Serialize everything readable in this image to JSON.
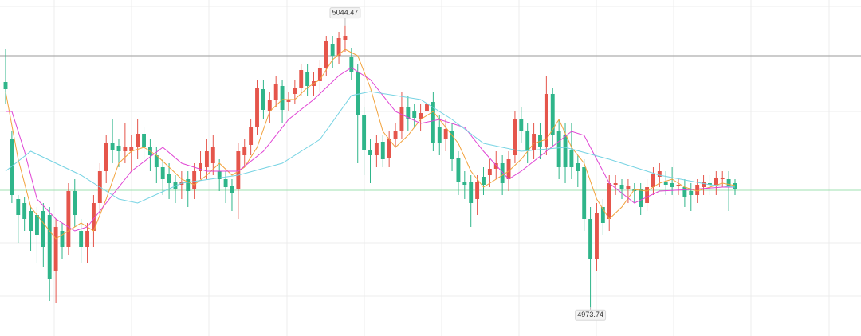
{
  "chart_data": {
    "type": "candlestick",
    "ylim": [
      4966.6,
      5051
    ],
    "up_color": "#e5554b",
    "down_color": "#2fb58a",
    "candles": [
      [
        5030.4,
        5038.6,
        5025.0,
        5028.6
      ],
      [
        5016.0,
        5018.0,
        5000.0,
        5002.0
      ],
      [
        5001.0,
        5002.0,
        4990.0,
        4997.0
      ],
      [
        5000.0,
        5001.4,
        4993.0,
        4996.0
      ],
      [
        4998.0,
        4999.0,
        4988.0,
        4993.0
      ],
      [
        4997.0,
        4999.0,
        4985.0,
        4992.0
      ],
      [
        4998.0,
        5000.0,
        4984.0,
        4989.0
      ],
      [
        4997.0,
        4999.0,
        4975.4,
        4981.0
      ],
      [
        4983.0,
        4996.0,
        4975.0,
        4994.0
      ],
      [
        4993.0,
        4995.0,
        4986.0,
        4989.0
      ],
      [
        4989.0,
        5005.0,
        4987.0,
        5003.0
      ],
      [
        5003.0,
        5006.0,
        4994.0,
        4997.0
      ],
      [
        4993.0,
        4996.0,
        4985.0,
        4989.0
      ],
      [
        4989.0,
        4995.0,
        4985.0,
        4993.0
      ],
      [
        4993.0,
        5002.0,
        4989.0,
        5000.0
      ],
      [
        5000.0,
        5010.0,
        4997.0,
        5008.0
      ],
      [
        5008.0,
        5017.0,
        5005.0,
        5015.0
      ],
      [
        5015.0,
        5021.0,
        5010.0,
        5013.4
      ],
      [
        5014.4,
        5016.0,
        5009.0,
        5013.0
      ],
      [
        5013.0,
        5020.0,
        5010.0,
        5014.0
      ],
      [
        5013.0,
        5017.0,
        5008.0,
        5014.2
      ],
      [
        5014.0,
        5021.0,
        5011.0,
        5017.4
      ],
      [
        5017.4,
        5019.0,
        5011.0,
        5014.0
      ],
      [
        5014.0,
        5016.0,
        5008.0,
        5012.0
      ],
      [
        5012.0,
        5014.0,
        5005.0,
        5009.0
      ],
      [
        5009.0,
        5011.0,
        5002.0,
        5006.0
      ],
      [
        5007.4,
        5010.0,
        5001.0,
        5005.0
      ],
      [
        5005.4,
        5007.0,
        5000.0,
        5003.4
      ],
      [
        5004.6,
        5008.0,
        5001.0,
        5005.4
      ],
      [
        5006.0,
        5008.0,
        4999.0,
        5003.0
      ],
      [
        5003.4,
        5010.0,
        5001.0,
        5008.0
      ],
      [
        5008.0,
        5013.0,
        5006.0,
        5010.0
      ],
      [
        5009.0,
        5016.0,
        5006.0,
        5013.0
      ],
      [
        5010.0,
        5017.0,
        5007.0,
        5014.0
      ],
      [
        5008.0,
        5011.0,
        5003.0,
        5006.0
      ],
      [
        5006.0,
        5008.0,
        5000.0,
        5004.0
      ],
      [
        5004.2,
        5006.0,
        4998.0,
        5002.6
      ],
      [
        5003.4,
        5015.0,
        4996.0,
        5013.0
      ],
      [
        5012.0,
        5016.0,
        5009.0,
        5014.0
      ],
      [
        5014.6,
        5021.0,
        5012.0,
        5019.0
      ],
      [
        5019.0,
        5031.0,
        5017.0,
        5029.0
      ],
      [
        5028.6,
        5031.0,
        5021.0,
        5023.4
      ],
      [
        5023.0,
        5028.0,
        5020.0,
        5026.0
      ],
      [
        5026.0,
        5032.0,
        5024.0,
        5030.0
      ],
      [
        5029.4,
        5031.0,
        5020.0,
        5023.4
      ],
      [
        5025.4,
        5028.0,
        5023.0,
        5026.0
      ],
      [
        5027.4,
        5031.0,
        5025.0,
        5029.0
      ],
      [
        5029.0,
        5035.0,
        5027.0,
        5033.4
      ],
      [
        5033.0,
        5035.0,
        5027.0,
        5029.4
      ],
      [
        5029.4,
        5033.0,
        5027.0,
        5030.6
      ],
      [
        5030.6,
        5036.0,
        5028.0,
        5034.0
      ],
      [
        5034.0,
        5042.0,
        5032.0,
        5040.6
      ],
      [
        5040.0,
        5042.0,
        5034.0,
        5037.0
      ],
      [
        5037.0,
        5043.0,
        5035.0,
        5041.4
      ],
      [
        5041.0,
        5044.47,
        5038.0,
        5042.0
      ],
      [
        5036.6,
        5039.0,
        5031.0,
        5033.0
      ],
      [
        5033.0,
        5035.0,
        5010.0,
        5022.0
      ],
      [
        5022.0,
        5024.0,
        5007.0,
        5013.4
      ],
      [
        5013.4,
        5016.0,
        5005.0,
        5012.0
      ],
      [
        5012.0,
        5017.0,
        5009.0,
        5015.0
      ],
      [
        5015.4,
        5017.0,
        5009.0,
        5011.0
      ],
      [
        5011.4,
        5018.0,
        5009.0,
        5016.0
      ],
      [
        5016.0,
        5020.0,
        5014.0,
        5018.0
      ],
      [
        5018.0,
        5028.0,
        5016.0,
        5024.0
      ],
      [
        5024.0,
        5027.0,
        5018.0,
        5021.0
      ],
      [
        5023.0,
        5025.0,
        5019.0,
        5021.4
      ],
      [
        5021.0,
        5025.0,
        5018.0,
        5022.6
      ],
      [
        5023.0,
        5027.0,
        5020.0,
        5025.0
      ],
      [
        5025.4,
        5028.0,
        5013.0,
        5015.0
      ],
      [
        5019.0,
        5022.0,
        5012.0,
        5015.0
      ],
      [
        5016.0,
        5021.0,
        5013.0,
        5018.6
      ],
      [
        5018.0,
        5020.0,
        5008.0,
        5011.0
      ],
      [
        5011.4,
        5013.0,
        5002.0,
        5005.4
      ],
      [
        5005.4,
        5008.0,
        5001.0,
        5004.6
      ],
      [
        5005.4,
        5007.0,
        4994.0,
        5000.0
      ],
      [
        5001.0,
        5007.0,
        4997.0,
        5005.4
      ],
      [
        5006.6,
        5009.0,
        5002.0,
        5004.6
      ],
      [
        5007.0,
        5011.0,
        5004.0,
        5008.6
      ],
      [
        5008.6,
        5013.0,
        5006.0,
        5010.0
      ],
      [
        5010.0,
        5012.0,
        5002.0,
        5005.0
      ],
      [
        5006.0,
        5013.0,
        5003.0,
        5011.0
      ],
      [
        5012.0,
        5023.0,
        5010.0,
        5021.0
      ],
      [
        5021.0,
        5024.0,
        5015.0,
        5018.0
      ],
      [
        5018.0,
        5020.0,
        5010.0,
        5013.0
      ],
      [
        5013.4,
        5020.0,
        5011.0,
        5017.4
      ],
      [
        5017.0,
        5020.0,
        5011.0,
        5014.0
      ],
      [
        5014.0,
        5032.0,
        5012.0,
        5027.4
      ],
      [
        5027.4,
        5029.0,
        5014.0,
        5017.0
      ],
      [
        5018.0,
        5021.0,
        5006.0,
        5009.0
      ],
      [
        5017.0,
        5020.0,
        5005.0,
        5009.0
      ],
      [
        5013.4,
        5020.0,
        5006.0,
        5009.0
      ],
      [
        5010.0,
        5012.0,
        5004.0,
        5008.0
      ],
      [
        5009.0,
        5011.0,
        4993.0,
        4996.0
      ],
      [
        4996.0,
        4999.0,
        4973.74,
        4986.0
      ],
      [
        4986.0,
        5000.0,
        4983.0,
        4997.4
      ],
      [
        4999.0,
        5001.0,
        4992.0,
        4995.0
      ],
      [
        4996.0,
        5007.0,
        4993.0,
        5005.0
      ],
      [
        5004.6,
        5007.0,
        5002.0,
        5005.0
      ],
      [
        5004.6,
        5006.0,
        5001.0,
        5003.4
      ],
      [
        5003.4,
        5006.0,
        5000.0,
        5004.4
      ],
      [
        5003.4,
        5005.0,
        5000.0,
        5003.0
      ],
      [
        5003.4,
        5005.0,
        4997.0,
        4999.0
      ],
      [
        5000.0,
        5006.0,
        4998.0,
        5004.0
      ],
      [
        5004.0,
        5009.0,
        5002.0,
        5007.4
      ],
      [
        5006.6,
        5010.0,
        5004.0,
        5008.0
      ],
      [
        5005.4,
        5008.0,
        5002.0,
        5004.6
      ],
      [
        5005.0,
        5009.0,
        5002.0,
        5004.0
      ],
      [
        5004.4,
        5006.0,
        5002.0,
        5004.6
      ],
      [
        5004.0,
        5006.0,
        4999.0,
        5001.4
      ],
      [
        5003.0,
        5005.0,
        4998.0,
        5002.0
      ],
      [
        5002.0,
        5006.0,
        5000.0,
        5004.6
      ],
      [
        5004.0,
        5007.0,
        5002.0,
        5005.4
      ],
      [
        5005.0,
        5007.0,
        5002.0,
        5004.6
      ],
      [
        5004.6,
        5008.0,
        5002.0,
        5006.4
      ],
      [
        5006.0,
        5008.0,
        5004.0,
        5006.4
      ],
      [
        5006.0,
        5008.0,
        4998.0,
        5004.0
      ],
      [
        5005.0,
        5006.0,
        5002.0,
        5003.4
      ]
    ],
    "series": [
      {
        "color": "#f2a23c",
        "x": [
          0,
          2,
          4,
          6,
          8,
          10,
          12,
          14,
          16,
          18,
          20,
          22,
          24,
          26,
          28,
          30,
          32,
          34,
          36,
          38,
          40,
          42,
          44,
          46,
          48,
          50,
          52,
          54,
          56,
          58,
          60,
          62,
          64,
          66,
          68,
          70,
          72,
          74,
          76,
          78,
          80,
          82,
          84,
          86,
          88,
          90,
          92,
          94,
          96,
          98,
          100,
          102,
          104,
          106,
          108,
          110,
          112,
          114,
          116
        ],
        "values": [
          5028,
          5011,
          4999,
          4995,
          4991,
          4993,
          4995,
          4993,
          5001,
          5010,
          5013,
          5014,
          5012,
          5009,
          5006,
          5004.6,
          5007,
          5010,
          5007,
          5009,
          5014,
          5023,
          5026,
          5026,
          5029,
          5031,
          5036,
          5038.6,
          5037,
          5029,
          5018,
          5014,
          5017,
          5021,
          5023,
          5019,
          5015,
          5008,
          5004,
          5006,
          5008,
          5011,
          5015,
          5016,
          5021,
          5014,
          5010,
          5001,
          4996,
          4999,
          5003.4,
          5003,
          5005,
          5006,
          5004,
          5003,
          5004,
          5005,
          5004.4
        ]
      },
      {
        "color": "#e044d4",
        "x": [
          0,
          1,
          3,
          5,
          8,
          11,
          13,
          16,
          20,
          25,
          28,
          32,
          37,
          41,
          45,
          49,
          53,
          55,
          58,
          62,
          66,
          69,
          73,
          76,
          80,
          82,
          86,
          90,
          92,
          96,
          100,
          104,
          109,
          114,
          116
        ],
        "values": [
          5023,
          5023,
          5013,
          5001,
          4996,
          4993,
          4994,
          5000,
          5008,
          5014,
          5010,
          5008,
          5008,
          5013,
          5021,
          5026,
          5032,
          5034,
          5031,
          5023,
          5020,
          5021,
          5019,
          5013,
          5006,
          5008,
          5013,
          5018,
          5017,
          5005,
          5000,
          5003,
          5003.4,
          5004,
          5004
        ]
      },
      {
        "color": "#76d3e3",
        "x": [
          0,
          4,
          12,
          18,
          21,
          28,
          37,
          44,
          50,
          55,
          58,
          66,
          71,
          76,
          82,
          89,
          96,
          104,
          112,
          116
        ],
        "values": [
          5008,
          5013,
          5007,
          5001,
          5000,
          5005,
          5007,
          5010,
          5016,
          5027,
          5028,
          5026,
          5021,
          5015,
          5013,
          5014,
          5011,
          5007,
          5004.6,
          5004
        ]
      }
    ],
    "reference_lines": [
      {
        "value": 5037,
        "color": "#9a9a9a"
      },
      {
        "value": 5003.2,
        "color": "#9fe0b0"
      }
    ],
    "annotations": [
      {
        "label": "5044.47",
        "value": 5044.47,
        "index": 54,
        "side": "top"
      },
      {
        "label": "4973.74",
        "value": 4973.74,
        "index": 93,
        "side": "bottom"
      }
    ]
  }
}
